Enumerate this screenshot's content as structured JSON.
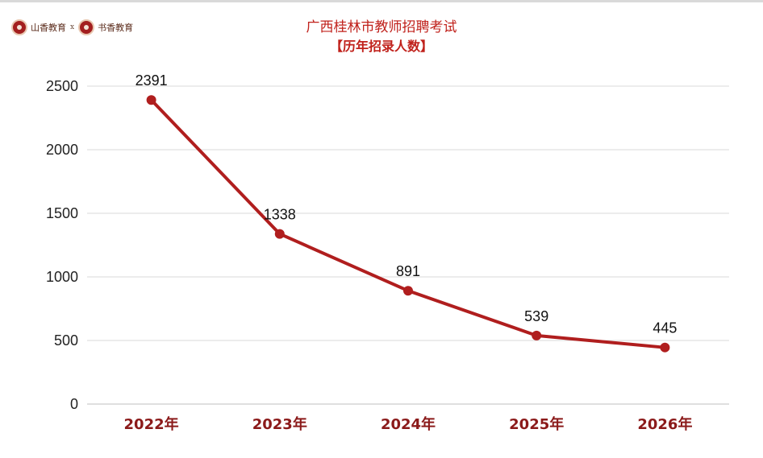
{
  "brand": {
    "name_left": "山香教育",
    "separator": "x",
    "name_right": "书香教育"
  },
  "chart_data": {
    "type": "line",
    "title": "广西桂林市教师招聘考试",
    "subtitle": "【历年招录人数】",
    "categories": [
      "2022年",
      "2023年",
      "2024年",
      "2025年",
      "2026年"
    ],
    "series": [
      {
        "values": [
          2391,
          1338,
          891,
          539,
          445
        ],
        "color": "#b01e1e"
      }
    ],
    "yticks": [
      0,
      500,
      1000,
      1500,
      2000,
      2500
    ],
    "ylim": [
      0,
      2500
    ],
    "grid": true,
    "xlabel": "",
    "ylabel": ""
  }
}
